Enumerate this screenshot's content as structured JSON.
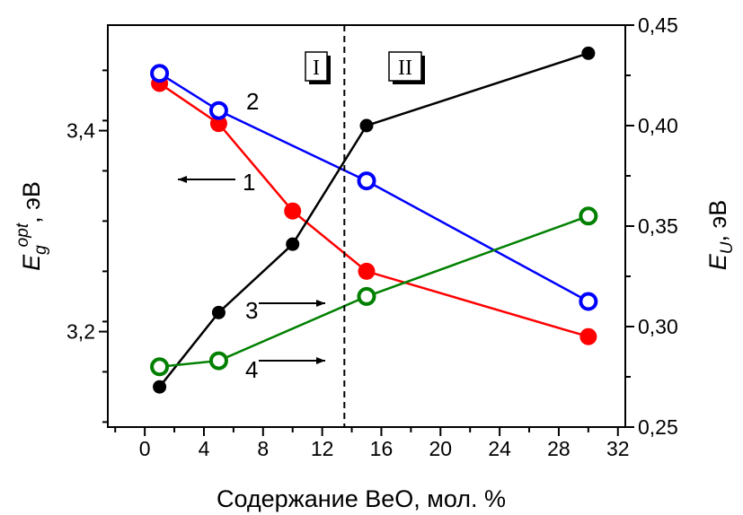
{
  "chart_data": {
    "type": "line",
    "xlabel": "Содержание BeO, мол. %",
    "ylabel_left": {
      "main": "E",
      "sub": "g",
      "sup": "opt",
      "unit": ", эВ"
    },
    "ylabel_right": {
      "main": "E",
      "sub": "U",
      "unit": ", эВ"
    },
    "xlim": [
      -2.5,
      32.5
    ],
    "ylim_left": [
      3.105,
      3.505
    ],
    "ylim_right": [
      0.25,
      0.45
    ],
    "x_ticks": [
      "0",
      "4",
      "8",
      "12",
      "16",
      "20",
      "24",
      "28",
      "32"
    ],
    "y_left_ticks": [
      "3,2",
      "3,4"
    ],
    "y_right_ticks": [
      "0,25",
      "0,30",
      "0,35",
      "0,40",
      "0,45"
    ],
    "divider_x": 13.5,
    "regions": [
      "I",
      "II"
    ],
    "series": [
      {
        "label": "1",
        "axis": "left",
        "color": "#ff0000",
        "marker": "filled",
        "x": [
          1,
          5,
          10,
          15,
          30
        ],
        "y": [
          3.447,
          3.407,
          3.32,
          3.26,
          3.195
        ]
      },
      {
        "label": "2",
        "axis": "left",
        "color": "#0000ff",
        "marker": "open",
        "x": [
          1,
          5,
          15,
          30
        ],
        "y": [
          3.457,
          3.42,
          3.35,
          3.23
        ]
      },
      {
        "label": "3",
        "axis": "right",
        "color": "#000000",
        "marker": "filled",
        "x": [
          1,
          5,
          10,
          15,
          30
        ],
        "y": [
          0.27,
          0.307,
          0.341,
          0.4,
          0.436
        ]
      },
      {
        "label": "4",
        "axis": "right",
        "color": "#008000",
        "marker": "open",
        "x": [
          1,
          5,
          15,
          30
        ],
        "y": [
          0.28,
          0.283,
          0.315,
          0.355
        ]
      }
    ]
  }
}
